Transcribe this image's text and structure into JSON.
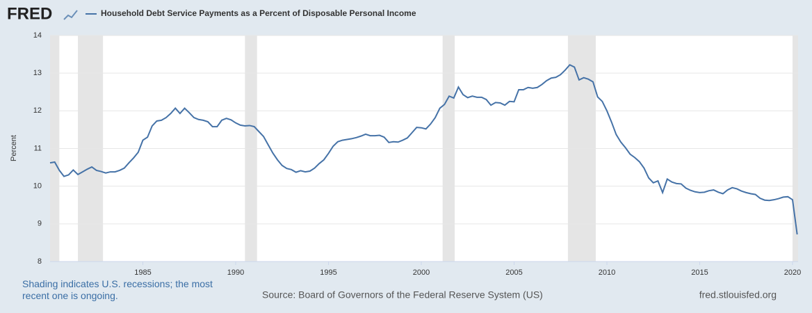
{
  "chart_data": {
    "type": "line",
    "logo": "FRED",
    "y_label": "Percent",
    "recession_note": "Shading indicates U.S. recessions; the most recent one is ongoing.",
    "source": "Source: Board of Governors of the Federal Reserve System (US)",
    "site": "fred.stlouisfed.org",
    "xlim": [
      1980,
      2020.3
    ],
    "xticks": [
      1985,
      1990,
      1995,
      2000,
      2005,
      2010,
      2015,
      2020
    ],
    "ylim": [
      8,
      14
    ],
    "yticks": [
      8,
      9,
      10,
      11,
      12,
      13,
      14
    ],
    "grid": true,
    "recession_color": "#e5e5e5",
    "recessions": [
      [
        1980,
        1980.5
      ],
      [
        1981.5,
        1982.85
      ],
      [
        1990.5,
        1991.15
      ],
      [
        2001.15,
        2001.8
      ],
      [
        2007.9,
        2009.4
      ],
      [
        2020,
        2020.3
      ]
    ],
    "x": [
      1980,
      1980.25,
      1980.5,
      1980.75,
      1981,
      1981.25,
      1981.5,
      1981.75,
      1982,
      1982.25,
      1982.5,
      1982.75,
      1983,
      1983.25,
      1983.5,
      1983.75,
      1984,
      1984.25,
      1984.5,
      1984.75,
      1985,
      1985.25,
      1985.5,
      1985.75,
      1986,
      1986.25,
      1986.5,
      1986.75,
      1987,
      1987.25,
      1987.5,
      1987.75,
      1988,
      1988.25,
      1988.5,
      1988.75,
      1989,
      1989.25,
      1989.5,
      1989.75,
      1990,
      1990.25,
      1990.5,
      1990.75,
      1991,
      1991.25,
      1991.5,
      1991.75,
      1992,
      1992.25,
      1992.5,
      1992.75,
      1993,
      1993.25,
      1993.5,
      1993.75,
      1994,
      1994.25,
      1994.5,
      1994.75,
      1995,
      1995.25,
      1995.5,
      1995.75,
      1996,
      1996.25,
      1996.5,
      1996.75,
      1997,
      1997.25,
      1997.5,
      1997.75,
      1998,
      1998.25,
      1998.5,
      1998.75,
      1999,
      1999.25,
      1999.5,
      1999.75,
      2000,
      2000.25,
      2000.5,
      2000.75,
      2001,
      2001.25,
      2001.5,
      2001.75,
      2002,
      2002.25,
      2002.5,
      2002.75,
      2003,
      2003.25,
      2003.5,
      2003.75,
      2004,
      2004.25,
      2004.5,
      2004.75,
      2005,
      2005.25,
      2005.5,
      2005.75,
      2006,
      2006.25,
      2006.5,
      2006.75,
      2007,
      2007.25,
      2007.5,
      2007.75,
      2008,
      2008.25,
      2008.5,
      2008.75,
      2009,
      2009.25,
      2009.5,
      2009.75,
      2010,
      2010.25,
      2010.5,
      2010.75,
      2011,
      2011.25,
      2011.5,
      2011.75,
      2012,
      2012.25,
      2012.5,
      2012.75,
      2013,
      2013.25,
      2013.5,
      2013.75,
      2014,
      2014.25,
      2014.5,
      2014.75,
      2015,
      2015.25,
      2015.5,
      2015.75,
      2016,
      2016.25,
      2016.5,
      2016.75,
      2017,
      2017.25,
      2017.5,
      2017.75,
      2018,
      2018.25,
      2018.5,
      2018.75,
      2019,
      2019.25,
      2019.5,
      2019.75,
      2020,
      2020.25
    ],
    "series": [
      {
        "name": "Household Debt Service Payments as a Percent of Disposable Personal Income",
        "color": "#4572a7",
        "values": [
          10.62,
          10.64,
          10.42,
          10.26,
          10.3,
          10.43,
          10.31,
          10.38,
          10.45,
          10.51,
          10.42,
          10.39,
          10.35,
          10.38,
          10.38,
          10.42,
          10.48,
          10.62,
          10.75,
          10.9,
          11.22,
          11.3,
          11.6,
          11.73,
          11.75,
          11.82,
          11.93,
          12.07,
          11.93,
          12.07,
          11.95,
          11.82,
          11.77,
          11.75,
          11.71,
          11.58,
          11.58,
          11.75,
          11.8,
          11.76,
          11.68,
          11.62,
          11.6,
          11.61,
          11.58,
          11.45,
          11.32,
          11.1,
          10.88,
          10.7,
          10.55,
          10.47,
          10.44,
          10.37,
          10.41,
          10.38,
          10.4,
          10.48,
          10.6,
          10.7,
          10.87,
          11.06,
          11.18,
          11.22,
          11.24,
          11.26,
          11.29,
          11.33,
          11.38,
          11.34,
          11.34,
          11.35,
          11.3,
          11.16,
          11.18,
          11.17,
          11.22,
          11.28,
          11.42,
          11.56,
          11.55,
          11.52,
          11.65,
          11.82,
          12.07,
          12.17,
          12.39,
          12.34,
          12.63,
          12.43,
          12.35,
          12.39,
          12.36,
          12.36,
          12.3,
          12.15,
          12.22,
          12.21,
          12.15,
          12.25,
          12.24,
          12.56,
          12.56,
          12.62,
          12.6,
          12.62,
          12.7,
          12.8,
          12.87,
          12.89,
          12.96,
          13.08,
          13.22,
          13.16,
          12.82,
          12.88,
          12.84,
          12.77,
          12.37,
          12.25,
          12.0,
          11.7,
          11.37,
          11.17,
          11.02,
          10.85,
          10.76,
          10.65,
          10.48,
          10.22,
          10.09,
          10.14,
          9.83,
          10.19,
          10.11,
          10.07,
          10.06,
          9.95,
          9.89,
          9.85,
          9.83,
          9.84,
          9.88,
          9.9,
          9.84,
          9.8,
          9.9,
          9.96,
          9.93,
          9.87,
          9.83,
          9.8,
          9.78,
          9.68,
          9.63,
          9.62,
          9.64,
          9.67,
          9.71,
          9.72,
          9.64,
          8.72
        ]
      }
    ]
  }
}
